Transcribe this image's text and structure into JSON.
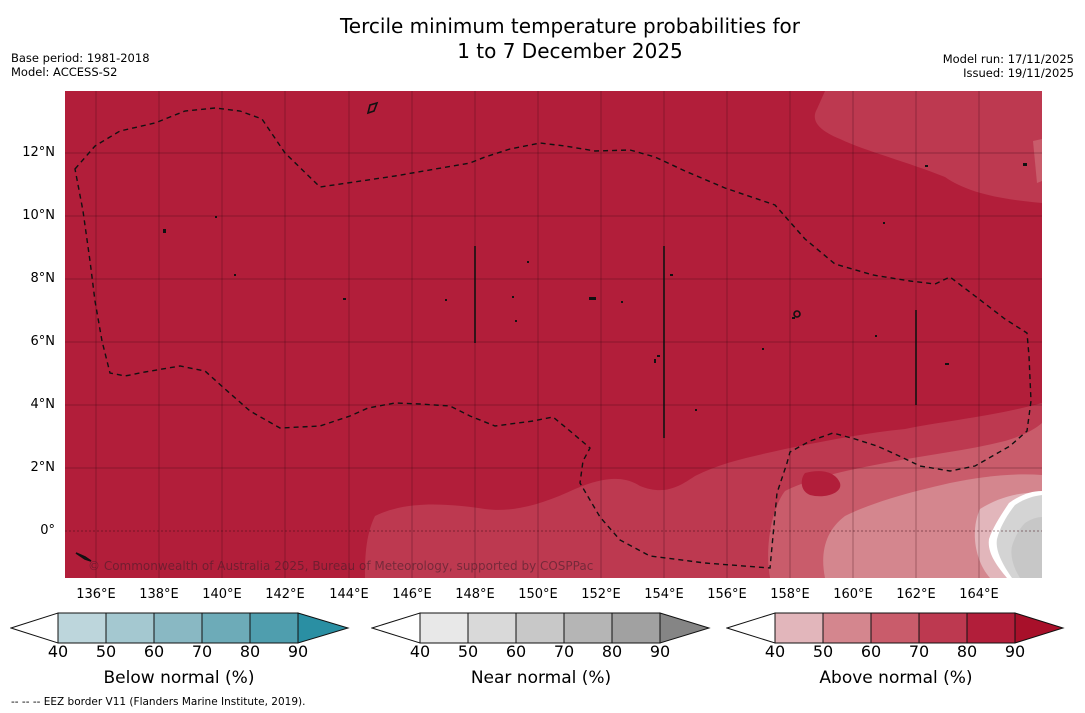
{
  "title": {
    "line1": "Tercile minimum temperature probabilities for",
    "line2": "1 to 7 December 2025"
  },
  "meta": {
    "base_period": "Base period: 1981-2018",
    "model": "Model: ACCESS-S2",
    "model_run": "Model run: 17/11/2025",
    "issued": "Issued: 19/11/2025"
  },
  "map": {
    "lat_labels": [
      "12°N",
      "10°N",
      "8°N",
      "6°N",
      "4°N",
      "2°N",
      "0°"
    ],
    "lon_labels": [
      "136°E",
      "138°E",
      "140°E",
      "142°E",
      "144°E",
      "146°E",
      "148°E",
      "150°E",
      "152°E",
      "154°E",
      "156°E",
      "158°E",
      "160°E",
      "162°E",
      "164°E"
    ],
    "copyright": "© Commonwealth of Australia 2025, Bureau of Meteorology, supported by COSPPac",
    "dominant_category": "Above normal",
    "dominant_probability": "80-90"
  },
  "colors": {
    "above_90": "#b21e3a",
    "above_80": "#bd3950",
    "above_70": "#c95c6b",
    "above_60": "#d4868e",
    "above_50": "#e2b6bb",
    "near_50": "#d4d4d4",
    "near_40": "#c7c7c7"
  },
  "colorbars": [
    {
      "title": "Below normal (%)",
      "ticks": [
        "40",
        "50",
        "60",
        "70",
        "80",
        "90"
      ],
      "colors": [
        "#bdd6dc",
        "#a4c8d0",
        "#89b8c3",
        "#6dabb8",
        "#4f9eae",
        "#2a8fa3"
      ]
    },
    {
      "title": "Near normal (%)",
      "ticks": [
        "40",
        "50",
        "60",
        "70",
        "80",
        "90"
      ],
      "colors": [
        "#e8e8e8",
        "#d9d9d9",
        "#c8c8c8",
        "#b5b5b5",
        "#a1a1a1",
        "#858585"
      ]
    },
    {
      "title": "Above normal (%)",
      "ticks": [
        "40",
        "50",
        "60",
        "70",
        "80",
        "90"
      ],
      "colors": [
        "#e2b6bb",
        "#d4868e",
        "#c95c6b",
        "#bd3950",
        "#b21e3a",
        "#a8102a"
      ]
    }
  ],
  "footnote": "-- -- -- EEZ border V11 (Flanders Marine Institute, 2019)."
}
